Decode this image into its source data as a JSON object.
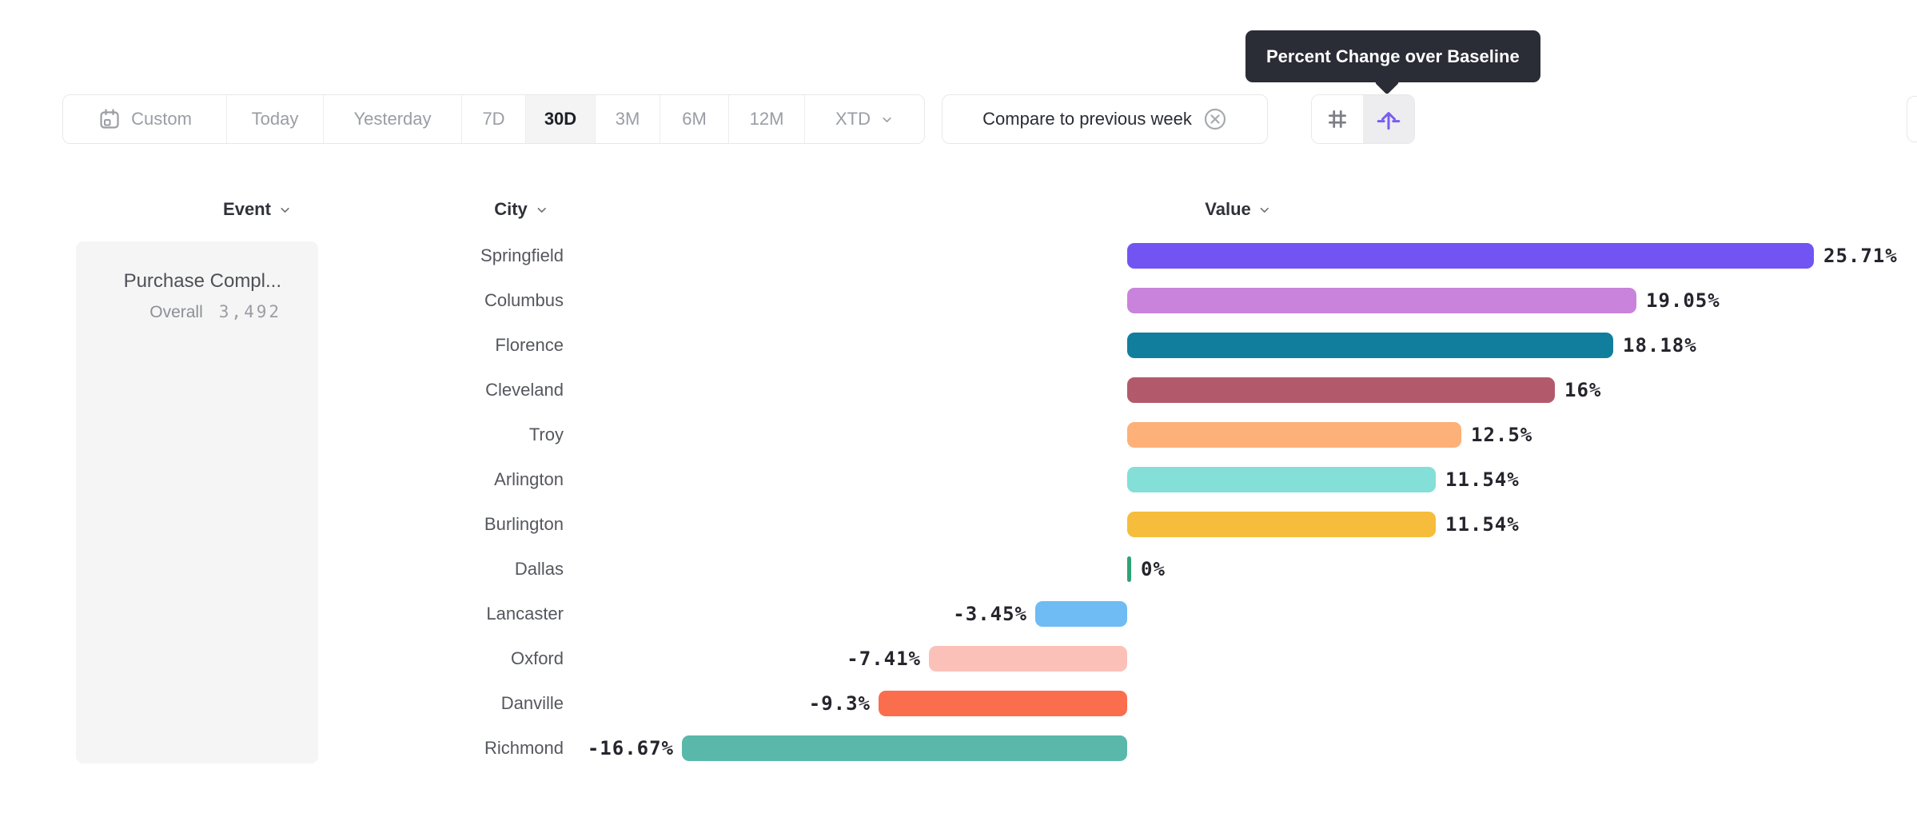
{
  "tooltip": {
    "text": "Percent Change over Baseline"
  },
  "toolbar": {
    "date_ranges": [
      {
        "label": "Custom",
        "icon": "calendar-icon",
        "selected": false,
        "dropdown": false
      },
      {
        "label": "Today",
        "icon": null,
        "selected": false,
        "dropdown": false
      },
      {
        "label": "Yesterday",
        "icon": null,
        "selected": false,
        "dropdown": false
      },
      {
        "label": "7D",
        "icon": null,
        "selected": false,
        "dropdown": false
      },
      {
        "label": "30D",
        "icon": null,
        "selected": true,
        "dropdown": false
      },
      {
        "label": "3M",
        "icon": null,
        "selected": false,
        "dropdown": false
      },
      {
        "label": "6M",
        "icon": null,
        "selected": false,
        "dropdown": false
      },
      {
        "label": "12M",
        "icon": null,
        "selected": false,
        "dropdown": false
      },
      {
        "label": "XTD",
        "icon": null,
        "selected": false,
        "dropdown": true
      }
    ],
    "compare": {
      "label": "Compare to previous week",
      "icon": "dismiss-circle-icon"
    },
    "view_toggle": [
      {
        "icon": "grid-icon",
        "selected": false,
        "color": "#7d7f86"
      },
      {
        "icon": "percent-change-baseline-icon",
        "selected": true,
        "color": "#7a5cf0"
      }
    ]
  },
  "columns": {
    "event": "Event",
    "city": "City",
    "value": "Value"
  },
  "event_panel": {
    "name": "Purchase Compl...",
    "segment_label": "Overall",
    "count": "3,492"
  },
  "chart_data": {
    "type": "bar",
    "orientation": "horizontal",
    "unit": "%",
    "baseline": 0,
    "legend": "none",
    "categories": [
      "Springfield",
      "Columbus",
      "Florence",
      "Cleveland",
      "Troy",
      "Arlington",
      "Burlington",
      "Dallas",
      "Lancaster",
      "Oxford",
      "Danville",
      "Richmond"
    ],
    "values": [
      25.71,
      19.05,
      18.18,
      16,
      12.5,
      11.54,
      11.54,
      0,
      -3.45,
      -7.41,
      -9.3,
      -16.67
    ],
    "value_labels": [
      "25.71%",
      "19.05%",
      "18.18%",
      "16%",
      "12.5%",
      "11.54%",
      "11.54%",
      "0%",
      "-3.45%",
      "-7.41%",
      "-9.3%",
      "-16.67%"
    ],
    "colors": [
      "#7254f3",
      "#c983dc",
      "#117e9e",
      "#b25a6c",
      "#fdb078",
      "#83dfd7",
      "#f6bd3c",
      "#2ea476",
      "#6ebcf3",
      "#fbc1b9",
      "#fa6d4d",
      "#59b8aa"
    ],
    "xlim": [
      -18,
      27
    ]
  }
}
